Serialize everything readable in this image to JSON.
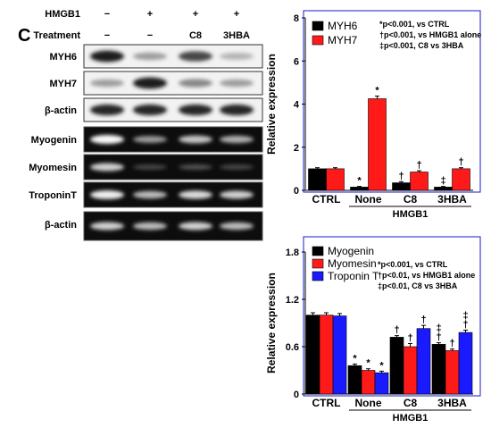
{
  "panel_label": "C",
  "blots": {
    "header_rows": [
      {
        "label": "HMGB1",
        "marks": [
          "−",
          "+",
          "+",
          "+"
        ]
      },
      {
        "label": "Treatment",
        "marks": [
          "−",
          "−",
          "C8",
          "3HBA"
        ]
      }
    ],
    "western_labels": [
      "MYH6",
      "MYH7",
      "β-actin"
    ],
    "pcr_labels": [
      "Myogenin",
      "Myomesin",
      "TroponinT",
      "β-actin"
    ],
    "western_intensity": [
      [
        0.95,
        0.35,
        0.75,
        0.25
      ],
      [
        0.35,
        0.95,
        0.45,
        0.35
      ],
      [
        0.9,
        0.9,
        0.9,
        0.9
      ]
    ],
    "pcr_intensity": [
      [
        1.0,
        0.55,
        0.75,
        0.65
      ],
      [
        0.8,
        0.15,
        0.2,
        0.15
      ],
      [
        0.95,
        0.7,
        0.85,
        0.8
      ],
      [
        0.8,
        0.7,
        0.8,
        0.7
      ]
    ]
  },
  "chart_data": [
    {
      "type": "bar",
      "categories": [
        "CTRL",
        "None",
        "C8",
        "3HBA"
      ],
      "group_label": "HMGB1",
      "ylabel": "Relative expression",
      "ylim": [
        0,
        8
      ],
      "yticks": [
        0,
        2,
        4,
        6,
        8
      ],
      "series": [
        {
          "name": "MYH6",
          "color": "#000000",
          "values": [
            1.0,
            0.15,
            0.35,
            0.15
          ],
          "errors": [
            0.05,
            0.03,
            0.05,
            0.03
          ]
        },
        {
          "name": "MYH7",
          "color": "#ff1a1a",
          "values": [
            1.0,
            4.25,
            0.85,
            1.0
          ],
          "errors": [
            0.05,
            0.12,
            0.06,
            0.05
          ]
        }
      ],
      "markers": [
        [
          "",
          ""
        ],
        [
          "*",
          "*"
        ],
        [
          "†",
          "†"
        ],
        [
          "‡",
          "†"
        ]
      ],
      "legend_position": "top-left",
      "notes": [
        "*p<0.001, vs CTRL",
        "†p<0.001, vs HMGB1 alone",
        "‡p<0.001, C8 vs 3HBA"
      ]
    },
    {
      "type": "bar",
      "categories": [
        "CTRL",
        "None",
        "C8",
        "3HBA"
      ],
      "group_label": "HMGB1",
      "ylabel": "Relative expression",
      "ylim": [
        0,
        1.8
      ],
      "yticks": [
        0,
        0.6,
        1.2,
        1.8
      ],
      "series": [
        {
          "name": "Myogenin",
          "color": "#000000",
          "values": [
            1.0,
            0.36,
            0.72,
            0.63
          ],
          "errors": [
            0.03,
            0.02,
            0.02,
            0.02
          ]
        },
        {
          "name": "Myomesin",
          "color": "#ff1a1a",
          "values": [
            1.0,
            0.3,
            0.6,
            0.55
          ],
          "errors": [
            0.03,
            0.02,
            0.04,
            0.02
          ]
        },
        {
          "name": "Troponin T",
          "color": "#1a1aff",
          "values": [
            0.99,
            0.27,
            0.83,
            0.78
          ],
          "errors": [
            0.03,
            0.02,
            0.04,
            0.03
          ]
        }
      ],
      "markers": [
        [
          "",
          "",
          ""
        ],
        [
          "*",
          "*",
          "*"
        ],
        [
          "†",
          "†",
          "†"
        ],
        [
          "‡\n†",
          "†",
          "‡\n†"
        ]
      ],
      "legend_position": "top-left",
      "notes": [
        "*p<0.001, vs CTRL",
        "†p<0.01, vs HMGB1 alone",
        "‡p<0.01, C8 vs 3HBA"
      ]
    }
  ]
}
